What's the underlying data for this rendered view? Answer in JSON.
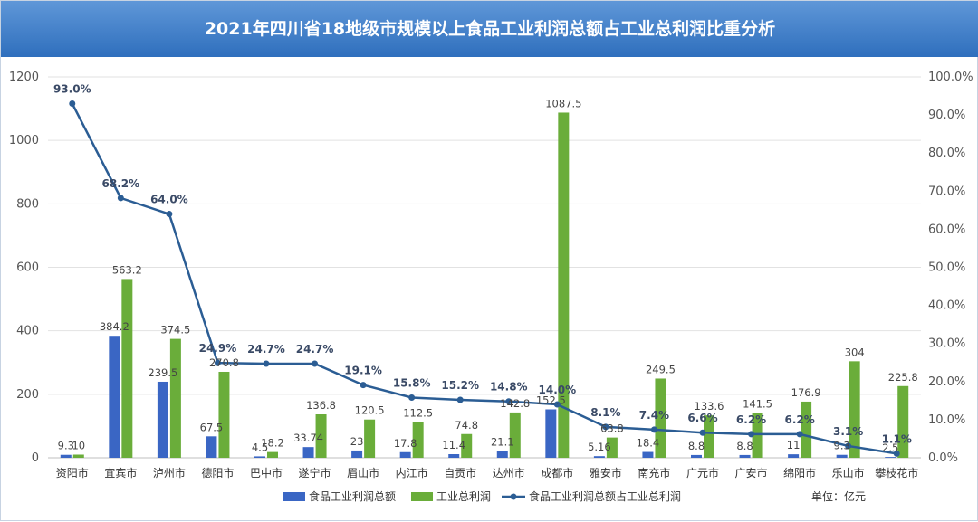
{
  "chart_data": {
    "type": "bar",
    "title": "2021年四川省18地级市规模以上食品工业利润总额占工业总利润比重分析",
    "unit_note": "单位：亿元",
    "categories": [
      "资阳市",
      "宜宾市",
      "泸州市",
      "德阳市",
      "巴中市",
      "遂宁市",
      "眉山市",
      "内江市",
      "自贡市",
      "达州市",
      "成都市",
      "雅安市",
      "南充市",
      "广元市",
      "广安市",
      "绵阳市",
      "乐山市",
      "攀枝花市"
    ],
    "series": [
      {
        "name": "食品工业利润总额",
        "kind": "bar",
        "axis": "left",
        "color": "#3a66c4",
        "values": [
          9.3,
          384.2,
          239.5,
          67.5,
          4.5,
          33.74,
          23,
          17.8,
          11.4,
          21.1,
          152.5,
          5.16,
          18.4,
          8.8,
          8.8,
          11,
          9.3,
          2.5
        ],
        "labels": [
          "9.3",
          "384.2",
          "239.5",
          "67.5",
          "4.5",
          "33.74",
          "23",
          "17.8",
          "11.4",
          "21.1",
          "152.5",
          "5.16",
          "18.4",
          "8.8",
          "8.8",
          "11",
          "9.3",
          "2.5"
        ]
      },
      {
        "name": "工业总利润",
        "kind": "bar",
        "axis": "left",
        "color": "#6aad3a",
        "values": [
          10,
          563.2,
          374.5,
          270.8,
          18.2,
          136.8,
          120.5,
          112.5,
          74.8,
          142.8,
          1087.5,
          63.8,
          249.5,
          133.6,
          141.5,
          176.9,
          304,
          225.8
        ],
        "labels": [
          "10",
          "563.2",
          "374.5",
          "270.8",
          "18.2",
          "136.8",
          "120.5",
          "112.5",
          "74.8",
          "142.8",
          "1087.5",
          "63.8",
          "249.5",
          "133.6",
          "141.5",
          "176.9",
          "304",
          "225.8"
        ]
      },
      {
        "name": "食品工业利润总额占工业总利润",
        "kind": "line",
        "axis": "right",
        "color": "#2b5d94",
        "values": [
          93.0,
          68.2,
          64.0,
          24.9,
          24.7,
          24.7,
          19.1,
          15.8,
          15.2,
          14.8,
          14.0,
          8.1,
          7.4,
          6.6,
          6.2,
          6.2,
          3.1,
          1.1
        ],
        "labels": [
          "93.0%",
          "68.2%",
          "64.0%",
          "24.9%",
          "24.7%",
          "24.7%",
          "19.1%",
          "15.8%",
          "15.2%",
          "14.8%",
          "14.0%",
          "8.1%",
          "7.4%",
          "6.6%",
          "6.2%",
          "6.2%",
          "3.1%",
          "1.1%"
        ]
      }
    ],
    "y_left": {
      "min": 0,
      "max": 1200,
      "ticks": [
        "0",
        "200",
        "400",
        "600",
        "800",
        "1000",
        "1200"
      ]
    },
    "y_right": {
      "min": 0,
      "max": 100,
      "ticks": [
        "0.0%",
        "10.0%",
        "20.0%",
        "30.0%",
        "40.0%",
        "50.0%",
        "60.0%",
        "70.0%",
        "80.0%",
        "90.0%",
        "100.0%"
      ]
    },
    "grid": true,
    "legend": "bottom"
  }
}
